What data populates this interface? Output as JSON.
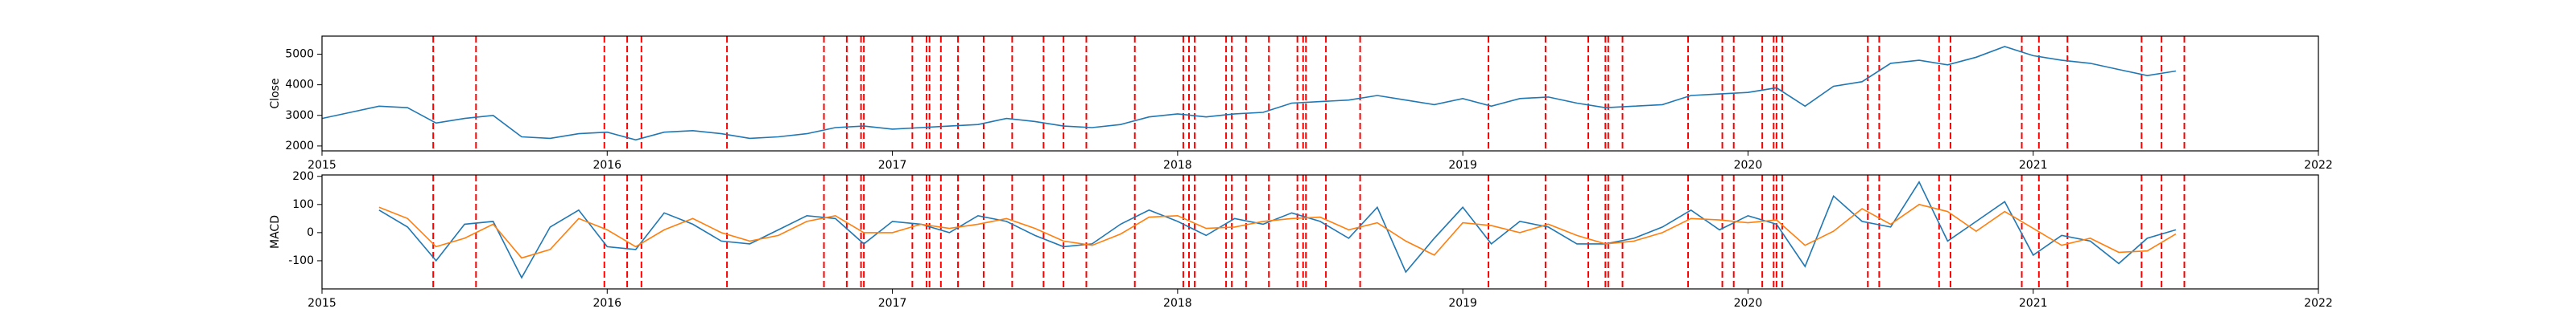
{
  "chart_data": [
    {
      "type": "line",
      "ylabel": "Close",
      "x": [
        2015.0,
        2015.1,
        2015.2,
        2015.3,
        2015.4,
        2015.5,
        2015.6,
        2015.7,
        2015.8,
        2015.9,
        2016.0,
        2016.1,
        2016.2,
        2016.3,
        2016.4,
        2016.5,
        2016.6,
        2016.7,
        2016.8,
        2016.9,
        2017.0,
        2017.1,
        2017.2,
        2017.3,
        2017.4,
        2017.5,
        2017.6,
        2017.7,
        2017.8,
        2017.9,
        2018.0,
        2018.1,
        2018.2,
        2018.3,
        2018.4,
        2018.5,
        2018.6,
        2018.7,
        2018.8,
        2018.9,
        2019.0,
        2019.1,
        2019.2,
        2019.3,
        2019.4,
        2019.5,
        2019.6,
        2019.7,
        2019.8,
        2019.9,
        2020.0,
        2020.1,
        2020.2,
        2020.3,
        2020.4,
        2020.5,
        2020.6,
        2020.7,
        2020.8,
        2020.9,
        2021.0,
        2021.1,
        2021.2,
        2021.3,
        2021.4,
        2021.5
      ],
      "series": [
        {
          "color": "#1f77b4",
          "values": [
            2900,
            3100,
            3300,
            3250,
            2750,
            2900,
            3000,
            2300,
            2250,
            2400,
            2450,
            2200,
            2450,
            2500,
            2400,
            2250,
            2300,
            2400,
            2600,
            2650,
            2550,
            2600,
            2650,
            2700,
            2900,
            2800,
            2650,
            2600,
            2700,
            2950,
            3050,
            2950,
            3050,
            3100,
            3400,
            3450,
            3500,
            3650,
            3500,
            3350,
            3550,
            3300,
            3550,
            3600,
            3400,
            3250,
            3300,
            3350,
            3650,
            3700,
            3750,
            3900,
            3300,
            3950,
            4100,
            4700,
            4800,
            4650,
            4900,
            5250,
            4950,
            4800,
            4700,
            4500,
            4300,
            4450
          ]
        }
      ],
      "xlim": [
        2015,
        2022
      ],
      "xticks": [
        2015,
        2016,
        2017,
        2018,
        2019,
        2020,
        2021,
        2022
      ],
      "ylim": [
        1840,
        5590
      ],
      "yticks": [
        2000,
        3000,
        4000,
        5000
      ],
      "vlines": [
        2015.39,
        2015.54,
        2015.99,
        2016.07,
        2016.12,
        2016.42,
        2016.76,
        2016.84,
        2016.89,
        2016.9,
        2017.07,
        2017.12,
        2017.13,
        2017.17,
        2017.23,
        2017.32,
        2017.42,
        2017.53,
        2017.6,
        2017.68,
        2017.85,
        2018.02,
        2018.04,
        2018.06,
        2018.17,
        2018.19,
        2018.24,
        2018.32,
        2018.42,
        2018.44,
        2018.45,
        2018.52,
        2018.64,
        2019.09,
        2019.29,
        2019.44,
        2019.5,
        2019.51,
        2019.56,
        2019.79,
        2019.91,
        2019.95,
        2020.05,
        2020.09,
        2020.1,
        2020.12,
        2020.42,
        2020.46,
        2020.67,
        2020.71,
        2020.96,
        2021.02,
        2021.12,
        2021.38,
        2021.45,
        2021.53
      ],
      "vline_color": "#ff0000"
    },
    {
      "type": "line",
      "ylabel": "MACD",
      "x": [
        2015.2,
        2015.3,
        2015.4,
        2015.5,
        2015.6,
        2015.7,
        2015.8,
        2015.9,
        2016.0,
        2016.1,
        2016.2,
        2016.3,
        2016.4,
        2016.5,
        2016.6,
        2016.7,
        2016.8,
        2016.9,
        2017.0,
        2017.1,
        2017.2,
        2017.3,
        2017.4,
        2017.5,
        2017.6,
        2017.7,
        2017.8,
        2017.9,
        2018.0,
        2018.1,
        2018.2,
        2018.3,
        2018.4,
        2018.5,
        2018.6,
        2018.7,
        2018.8,
        2018.9,
        2019.0,
        2019.1,
        2019.2,
        2019.3,
        2019.4,
        2019.5,
        2019.6,
        2019.7,
        2019.8,
        2019.9,
        2020.0,
        2020.1,
        2020.2,
        2020.3,
        2020.4,
        2020.5,
        2020.6,
        2020.7,
        2020.8,
        2020.9,
        2021.0,
        2021.1,
        2021.2,
        2021.3,
        2021.4,
        2021.5
      ],
      "series": [
        {
          "color": "#1f77b4",
          "values": [
            80,
            20,
            -100,
            30,
            40,
            -160,
            20,
            80,
            -50,
            -60,
            70,
            30,
            -30,
            -40,
            10,
            60,
            50,
            -40,
            40,
            30,
            0,
            60,
            40,
            -10,
            -50,
            -40,
            30,
            80,
            40,
            -10,
            50,
            30,
            70,
            40,
            -20,
            90,
            -140,
            -20,
            90,
            -40,
            40,
            20,
            -40,
            -40,
            -20,
            20,
            80,
            10,
            60,
            30,
            -120,
            130,
            40,
            20,
            180,
            -30,
            40,
            110,
            -80,
            -10,
            -30,
            -110,
            -20,
            10
          ]
        },
        {
          "color": "#ff7f0e",
          "values": [
            90,
            50,
            -50,
            -20,
            30,
            -90,
            -60,
            50,
            10,
            -50,
            10,
            50,
            0,
            -30,
            -10,
            40,
            60,
            0,
            0,
            30,
            15,
            30,
            50,
            15,
            -30,
            -45,
            -5,
            55,
            60,
            15,
            20,
            40,
            50,
            55,
            10,
            35,
            -30,
            -80,
            35,
            25,
            0,
            30,
            -10,
            -40,
            -30,
            0,
            50,
            45,
            35,
            45,
            -45,
            5,
            85,
            30,
            100,
            75,
            5,
            75,
            15,
            -45,
            -20,
            -70,
            -65,
            -5
          ]
        }
      ],
      "xlim": [
        2015,
        2022
      ],
      "xticks": [
        2015,
        2016,
        2017,
        2018,
        2019,
        2020,
        2021,
        2022
      ],
      "ylim": [
        -200,
        205
      ],
      "yticks": [
        -100,
        0,
        100,
        200
      ],
      "vlines": [
        2015.39,
        2015.54,
        2015.99,
        2016.07,
        2016.12,
        2016.42,
        2016.76,
        2016.84,
        2016.89,
        2016.9,
        2017.07,
        2017.12,
        2017.13,
        2017.17,
        2017.23,
        2017.32,
        2017.42,
        2017.53,
        2017.6,
        2017.68,
        2017.85,
        2018.02,
        2018.04,
        2018.06,
        2018.17,
        2018.19,
        2018.24,
        2018.32,
        2018.42,
        2018.44,
        2018.45,
        2018.52,
        2018.64,
        2019.09,
        2019.29,
        2019.44,
        2019.5,
        2019.51,
        2019.56,
        2019.79,
        2019.91,
        2019.95,
        2020.05,
        2020.09,
        2020.1,
        2020.12,
        2020.42,
        2020.46,
        2020.67,
        2020.71,
        2020.96,
        2021.02,
        2021.12,
        2021.38,
        2021.45,
        2021.53
      ],
      "vline_color": "#ff0000"
    }
  ]
}
